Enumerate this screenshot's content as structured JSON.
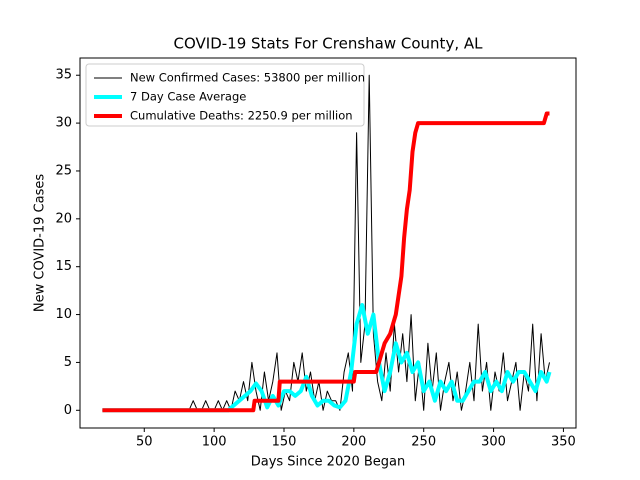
{
  "chart_data": {
    "type": "line",
    "title": "COVID-19 Stats For Crenshaw County, AL",
    "xlabel": "Days Since 2020 Began",
    "ylabel": "New COVID-19 Cases",
    "xlim": [
      4,
      359
    ],
    "ylim": [
      -1.85,
      36.8
    ],
    "xticks": [
      50,
      100,
      150,
      200,
      250,
      300,
      350
    ],
    "yticks": [
      0,
      5,
      10,
      15,
      20,
      25,
      30,
      35
    ],
    "legend": "upper left",
    "series": [
      {
        "name": "New Confirmed Cases: 53800 per million",
        "color": "#000000",
        "width": 1,
        "x": [
          20,
          82,
          85,
          88,
          91,
          94,
          97,
          100,
          103,
          106,
          109,
          112,
          115,
          118,
          121,
          124,
          127,
          130,
          133,
          136,
          139,
          142,
          145,
          148,
          151,
          154,
          157,
          160,
          163,
          166,
          169,
          172,
          175,
          178,
          181,
          184,
          187,
          190,
          193,
          196,
          199,
          202,
          205,
          208,
          211,
          214,
          217,
          220,
          223,
          226,
          229,
          232,
          235,
          238,
          241,
          244,
          247,
          250,
          253,
          256,
          259,
          262,
          265,
          268,
          271,
          274,
          277,
          280,
          283,
          286,
          289,
          292,
          295,
          298,
          301,
          304,
          307,
          310,
          313,
          316,
          319,
          322,
          325,
          328,
          331,
          334,
          337,
          340
        ],
        "values": [
          0,
          0,
          1,
          0,
          0,
          1,
          0,
          0,
          1,
          0,
          1,
          0,
          2,
          1,
          3,
          1,
          5,
          2,
          0,
          4,
          1,
          3,
          6,
          0,
          2,
          1,
          5,
          3,
          6,
          2,
          4,
          1,
          3,
          0,
          2,
          1,
          1,
          0,
          4,
          6,
          2,
          29,
          5,
          9,
          35,
          8,
          3,
          1,
          6,
          2,
          9,
          4,
          8,
          3,
          10,
          1,
          5,
          0,
          7,
          2,
          6,
          0,
          3,
          5,
          1,
          4,
          0,
          2,
          5,
          1,
          9,
          2,
          5,
          0,
          4,
          2,
          6,
          1,
          3,
          5,
          0,
          4,
          2,
          9,
          1,
          8,
          3,
          5
        ]
      },
      {
        "name": "7 Day Case Average",
        "color": "#00ffff",
        "width": 4,
        "x": [
          20,
          110,
          114,
          118,
          122,
          126,
          130,
          134,
          138,
          142,
          146,
          150,
          154,
          158,
          162,
          166,
          170,
          174,
          178,
          182,
          186,
          190,
          194,
          198,
          202,
          206,
          210,
          214,
          218,
          222,
          226,
          230,
          234,
          238,
          242,
          246,
          250,
          254,
          258,
          262,
          266,
          270,
          274,
          278,
          282,
          286,
          290,
          294,
          298,
          302,
          306,
          310,
          314,
          318,
          322,
          326,
          330,
          334,
          338,
          340
        ],
        "values": [
          0,
          0,
          0.5,
          1,
          1.5,
          2,
          2.8,
          2,
          0.3,
          1.5,
          0.5,
          2,
          2,
          1.5,
          2,
          3.5,
          1.5,
          0.5,
          1,
          1,
          0.5,
          0.3,
          1,
          4,
          9,
          11,
          8,
          10,
          5,
          2,
          4,
          7,
          5,
          6,
          4,
          5,
          2,
          3,
          1,
          3,
          2,
          3,
          1,
          1,
          2,
          3,
          3,
          4,
          2,
          3,
          2,
          4,
          3,
          4,
          4,
          3,
          2,
          4,
          3,
          4
        ]
      },
      {
        "name": "Cumulative Deaths: 2250.9 per million",
        "color": "#ff0000",
        "width": 4,
        "x": [
          20,
          128,
          129,
          146,
          147,
          200,
          201,
          216,
          218,
          222,
          226,
          228,
          230,
          232,
          234,
          236,
          238,
          240,
          242,
          244,
          246,
          336,
          338,
          340
        ],
        "values": [
          0,
          0,
          1,
          1,
          3,
          3,
          4,
          4,
          5,
          7,
          8,
          9,
          10,
          12,
          14,
          18,
          21,
          23,
          27,
          29,
          30,
          30,
          31,
          31
        ]
      }
    ]
  }
}
